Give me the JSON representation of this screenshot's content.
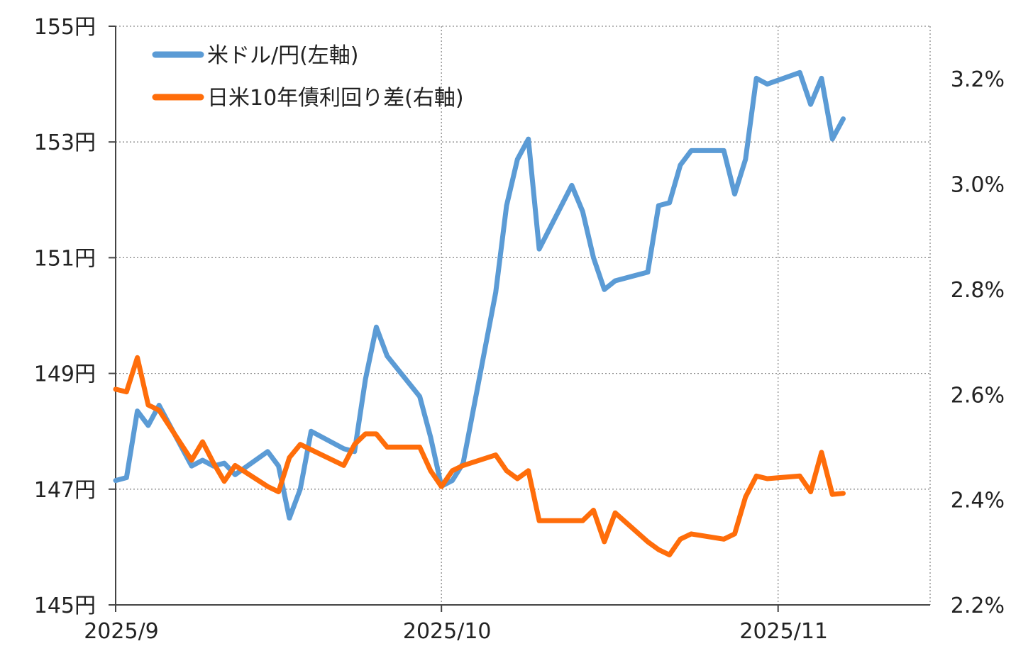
{
  "chart_data": {
    "type": "line",
    "title": "",
    "x_tick_labels": [
      "2025/9",
      "2025/10",
      "2025/11"
    ],
    "left_axis": {
      "ylim": [
        145,
        155
      ],
      "ticks": [
        145,
        147,
        149,
        151,
        153,
        155
      ],
      "tick_labels": [
        "145円",
        "147円",
        "149円",
        "151円",
        "153円",
        "155円"
      ]
    },
    "right_axis": {
      "ylim": [
        2.2,
        3.3
      ],
      "ticks": [
        2.2,
        2.4,
        2.6,
        2.8,
        3.0,
        3.2
      ],
      "tick_labels": [
        "2.2%",
        "2.4%",
        "2.6%",
        "2.8%",
        "3.0%",
        "3.2%"
      ]
    },
    "grid": true,
    "legend_position": "top-left",
    "series": [
      {
        "name": "米ドル/円(左軸)",
        "axis": "left",
        "color": "#5b9bd5",
        "x": [
          "2025-09-01",
          "2025-09-02",
          "2025-09-03",
          "2025-09-04",
          "2025-09-05",
          "2025-09-08",
          "2025-09-09",
          "2025-09-10",
          "2025-09-11",
          "2025-09-12",
          "2025-09-15",
          "2025-09-16",
          "2025-09-17",
          "2025-09-18",
          "2025-09-19",
          "2025-09-22",
          "2025-09-23",
          "2025-09-24",
          "2025-09-25",
          "2025-09-26",
          "2025-09-29",
          "2025-09-30",
          "2025-10-01",
          "2025-10-02",
          "2025-10-03",
          "2025-10-06",
          "2025-10-07",
          "2025-10-08",
          "2025-10-09",
          "2025-10-10",
          "2025-10-13",
          "2025-10-14",
          "2025-10-15",
          "2025-10-16",
          "2025-10-17",
          "2025-10-20",
          "2025-10-21",
          "2025-10-22",
          "2025-10-23",
          "2025-10-24",
          "2025-10-27",
          "2025-10-28",
          "2025-10-29",
          "2025-10-30",
          "2025-10-31",
          "2025-11-03",
          "2025-11-04",
          "2025-11-05",
          "2025-11-06",
          "2025-11-07"
        ],
        "values": [
          147.15,
          147.2,
          148.35,
          148.1,
          148.45,
          147.4,
          147.5,
          147.4,
          147.45,
          147.25,
          147.65,
          147.4,
          146.5,
          147.0,
          148.0,
          147.7,
          147.65,
          148.9,
          149.8,
          149.3,
          148.6,
          147.9,
          147.05,
          147.15,
          147.45,
          150.4,
          151.9,
          152.7,
          153.05,
          151.15,
          152.25,
          151.8,
          151.0,
          150.45,
          150.6,
          150.75,
          151.9,
          151.95,
          152.6,
          152.85,
          152.85,
          152.1,
          152.7,
          154.1,
          154.0,
          154.2,
          153.65,
          154.1,
          153.05,
          153.4
        ]
      },
      {
        "name": "日米10年債利回り差(右軸)",
        "axis": "right",
        "color": "#ff6d0a",
        "x": [
          "2025-09-01",
          "2025-09-02",
          "2025-09-03",
          "2025-09-04",
          "2025-09-05",
          "2025-09-08",
          "2025-09-09",
          "2025-09-10",
          "2025-09-11",
          "2025-09-12",
          "2025-09-15",
          "2025-09-16",
          "2025-09-17",
          "2025-09-18",
          "2025-09-19",
          "2025-09-22",
          "2025-09-23",
          "2025-09-24",
          "2025-09-25",
          "2025-09-26",
          "2025-09-29",
          "2025-09-30",
          "2025-10-01",
          "2025-10-02",
          "2025-10-03",
          "2025-10-06",
          "2025-10-07",
          "2025-10-08",
          "2025-10-09",
          "2025-10-10",
          "2025-10-13",
          "2025-10-14",
          "2025-10-15",
          "2025-10-16",
          "2025-10-17",
          "2025-10-20",
          "2025-10-21",
          "2025-10-22",
          "2025-10-23",
          "2025-10-24",
          "2025-10-27",
          "2025-10-28",
          "2025-10-29",
          "2025-10-30",
          "2025-10-31",
          "2025-11-03",
          "2025-11-04",
          "2025-11-05",
          "2025-11-06",
          "2025-11-07"
        ],
        "values": [
          2.61,
          2.605,
          2.67,
          2.58,
          2.57,
          2.475,
          2.51,
          2.47,
          2.435,
          2.465,
          2.425,
          2.415,
          2.48,
          2.505,
          2.495,
          2.465,
          2.505,
          2.525,
          2.525,
          2.5,
          2.5,
          2.455,
          2.425,
          2.455,
          2.465,
          2.485,
          2.455,
          2.44,
          2.455,
          2.36,
          2.36,
          2.36,
          2.38,
          2.32,
          2.375,
          2.32,
          2.305,
          2.295,
          2.325,
          2.335,
          2.325,
          2.335,
          2.405,
          2.445,
          2.44,
          2.445,
          2.415,
          2.49,
          2.41,
          2.412
        ]
      }
    ]
  }
}
